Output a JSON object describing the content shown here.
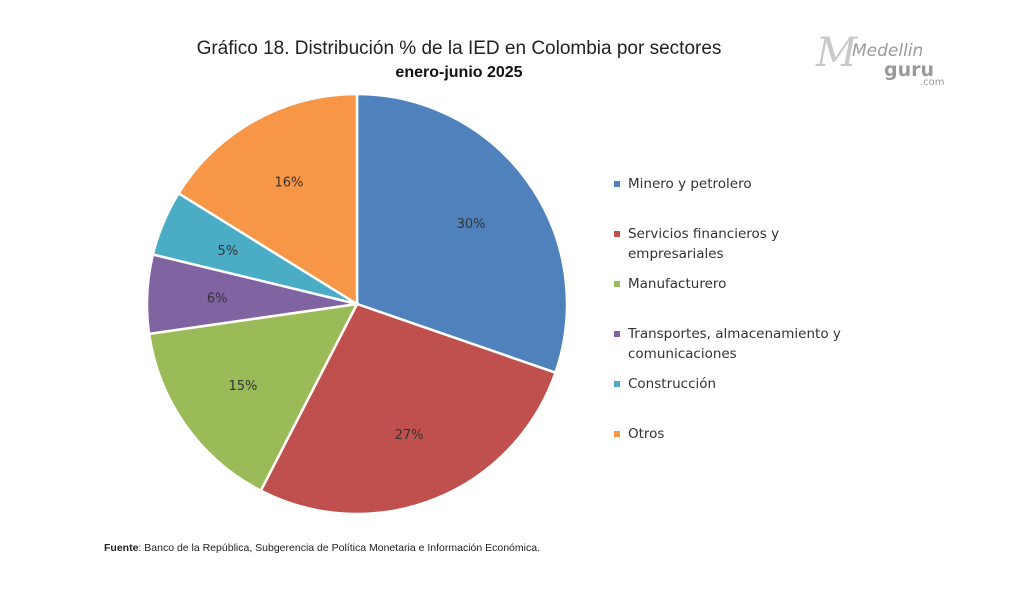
{
  "chart_data": {
    "type": "pie",
    "title": "Gráfico 18. Distribución % de la IED en Colombia por sectores",
    "subtitle": "enero-junio 2025",
    "start_angle_deg": 0,
    "direction": "clockwise",
    "slices": [
      {
        "name": "Minero y petrolero",
        "value": 30,
        "label": "30%",
        "color": "#4F81BD"
      },
      {
        "name": "Servicios financieros y empresariales",
        "value": 27,
        "label": "27%",
        "color": "#C0504D"
      },
      {
        "name": "Manufacturero",
        "value": 15,
        "label": "15%",
        "color": "#9BBB59"
      },
      {
        "name": "Transportes, almacenamiento y comunicaciones",
        "value": 6,
        "label": "6%",
        "color": "#8064A2"
      },
      {
        "name": "Construcción",
        "value": 5,
        "label": "5%",
        "color": "#4BACC6"
      },
      {
        "name": "Otros",
        "value": 16,
        "label": "16%",
        "color": "#F79646"
      }
    ],
    "legend": [
      {
        "label": "Minero y petrolero",
        "color": "#4F81BD"
      },
      {
        "label": "Servicios financieros y empresariales",
        "color": "#C0504D"
      },
      {
        "label": "Manufacturero",
        "color": "#9BBB59"
      },
      {
        "label": "Transportes, almacenamiento y comunicaciones",
        "color": "#8064A2"
      },
      {
        "label": "Construcción",
        "color": "#4BACC6"
      },
      {
        "label": "Otros",
        "color": "#F79646"
      }
    ],
    "legend_position": "right"
  },
  "source": {
    "prefix": "Fuente",
    "text": ": Banco de la República, Subgerencia de Política Monetaria e Información Económica."
  },
  "logo": {
    "text_main": "Medellin",
    "text_guru": "guru",
    "text_domain": ".com"
  }
}
